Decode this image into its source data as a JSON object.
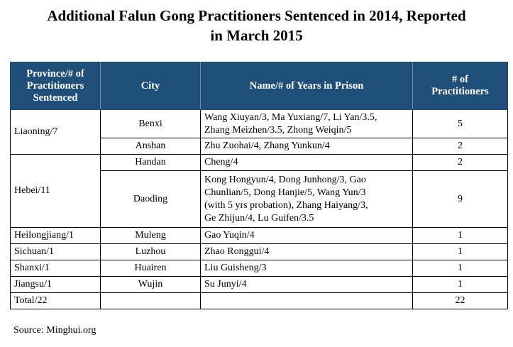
{
  "title_line1": "Additional Falun Gong Practitioners Sentenced in 2014, Reported",
  "title_line2": "in March 2015",
  "headers": {
    "province": [
      "Province/# of",
      "Practitioners",
      "Sentenced"
    ],
    "city": "City",
    "names": "Name/# of Years in Prison",
    "count": [
      "# of",
      "Practitioners"
    ]
  },
  "rows": [
    {
      "province": "Liaoning/7",
      "city": "Benxi",
      "names": [
        "Wang Xiuyan/3, Ma Yuxiang/7, Li Yan/3.5,",
        "Zhang Meizhen/3.5, Zhong Weiqin/5"
      ],
      "count": "5"
    },
    {
      "city": "Anshan",
      "names": [
        "Zhu Zuohai/4, Zhang  Yunkun/4"
      ],
      "count": "2"
    },
    {
      "province": "Hebei/11",
      "city": "Handan",
      "names": [
        "Cheng/4"
      ],
      "count": "2"
    },
    {
      "city": "Daoding",
      "names": [
        "Kong Hongyun/4, Dong Junhong/3, Gao",
        "Chunlian/5, Dong Hanjie/5, Wang Yun/3",
        "(with 5 yrs probation), Zhang Haiyang/3,",
        "Ge Zhijun/4, Lu Guifen/3.5"
      ],
      "count": "9"
    },
    {
      "province": "Heilongjiang/1",
      "city": "Muleng",
      "names": [
        "Gao Yuqin/4"
      ],
      "count": "1"
    },
    {
      "province": "Sichuan/1",
      "city": "Luzhou",
      "names": [
        "Zhao Ronggui/4"
      ],
      "count": "1"
    },
    {
      "province": "Shanxi/1",
      "city": "Huairen",
      "names": [
        "Liu Guisheng/3"
      ],
      "count": "1"
    },
    {
      "province": "Jiangsu/1",
      "city": "Wujin",
      "names": [
        "Su Junyi/4"
      ],
      "count": "1"
    },
    {
      "province": "Total/22",
      "city": "",
      "names": [
        ""
      ],
      "count": "22"
    }
  ],
  "source": "Source: Minghui.org"
}
